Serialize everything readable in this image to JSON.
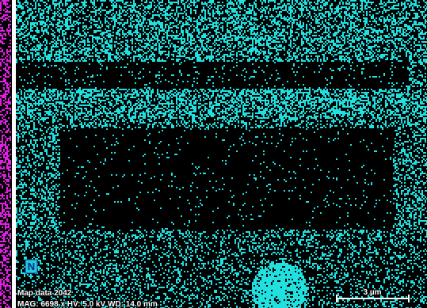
{
  "overlay": {
    "element": "N",
    "map_data": "Map data 2042",
    "info": "MAG: 6698 x  HV: 5.0 kV  WD: 14.0 mm",
    "scale_bar": "3 µm"
  }
}
